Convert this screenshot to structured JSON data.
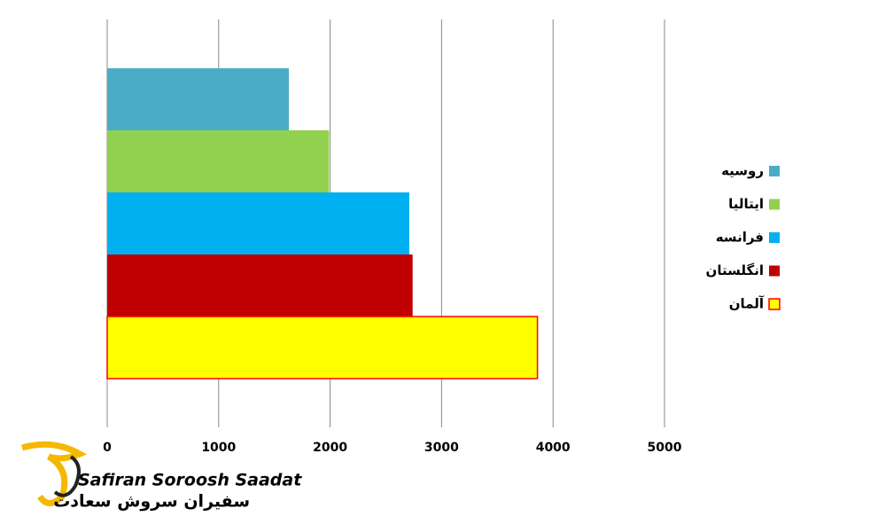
{
  "chart_data": {
    "type": "barh",
    "series": [
      {
        "name": "روسیه",
        "color": "#4bacc6",
        "values": [
          1630
        ]
      },
      {
        "name": "ایتالیا",
        "color": "#92d050",
        "values": [
          1990
        ]
      },
      {
        "name": "فرانسه",
        "color": "#00b0f0",
        "values": [
          2710
        ]
      },
      {
        "name": "انگلستان",
        "color": "#c00000",
        "values": [
          2740
        ]
      },
      {
        "name": "آلمان",
        "color": "#ffff00",
        "edgecolor": "#ff0000",
        "values": [
          3860
        ]
      }
    ],
    "xlim": [
      0,
      5000
    ],
    "xticks": [
      0,
      1000,
      2000,
      3000,
      4000,
      5000
    ],
    "grid": true,
    "legend": "right"
  },
  "logo": {
    "latin": "Safiran Soroosh Saadat",
    "persian": "سفیران سروش سعادت"
  }
}
